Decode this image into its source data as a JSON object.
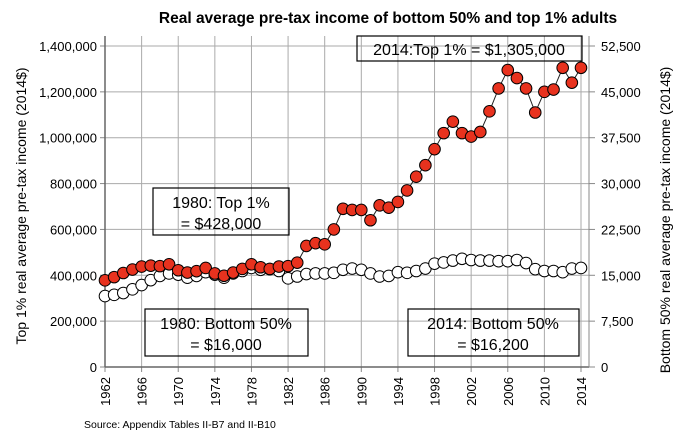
{
  "chart_data": {
    "type": "line",
    "title": "Real average pre-tax income of bottom 50% and top 1% adults",
    "ylabel": "Top 1% real average pre-tax income (2014$)",
    "y2label": "Bottom 50% real average pre-tax income (2014$)",
    "source": "Source: Appendix Tables II-B7 and II-B10",
    "xlim": [
      1962,
      2014
    ],
    "ylim": [
      0,
      1400000
    ],
    "y2lim": [
      0,
      52500
    ],
    "grid": true,
    "x_ticks": [
      "1962",
      "1966",
      "1970",
      "1974",
      "1978",
      "1982",
      "1986",
      "1990",
      "1994",
      "1998",
      "2002",
      "2006",
      "2010",
      "2014"
    ],
    "y_ticks": [
      "0",
      "200,000",
      "400,000",
      "600,000",
      "800,000",
      "1,000,000",
      "1,200,000",
      "1,400,000"
    ],
    "y2_ticks": [
      "0",
      "7,500",
      "15,000",
      "22,500",
      "30,000",
      "37,500",
      "45,000",
      "52,500"
    ],
    "x": [
      1962,
      1963,
      1964,
      1965,
      1966,
      1967,
      1968,
      1969,
      1970,
      1971,
      1972,
      1973,
      1974,
      1975,
      1976,
      1977,
      1978,
      1979,
      1980,
      1981,
      1982,
      1983,
      1984,
      1985,
      1986,
      1987,
      1988,
      1989,
      1990,
      1991,
      1992,
      1993,
      1994,
      1995,
      1996,
      1997,
      1998,
      1999,
      2000,
      2001,
      2002,
      2003,
      2004,
      2005,
      2006,
      2007,
      2008,
      2009,
      2010,
      2011,
      2012,
      2013,
      2014
    ],
    "series": [
      {
        "name": "Top 1%",
        "axis": "left",
        "color": "#e8321e",
        "values": [
          378000,
          392000,
          410000,
          425000,
          438000,
          442000,
          440000,
          448000,
          422000,
          412000,
          418000,
          432000,
          408000,
          398000,
          412000,
          428000,
          448000,
          435000,
          428000,
          438000,
          440000,
          455000,
          528000,
          540000,
          535000,
          600000,
          690000,
          685000,
          685000,
          640000,
          705000,
          695000,
          720000,
          770000,
          830000,
          880000,
          950000,
          1020000,
          1070000,
          1020000,
          1005000,
          1025000,
          1115000,
          1215000,
          1295000,
          1260000,
          1215000,
          1110000,
          1200000,
          1210000,
          1305000,
          1240000,
          1305000
        ]
      },
      {
        "name": "Bottom 50%",
        "axis": "right",
        "color": "#ffffff",
        "values": [
          11600,
          11800,
          12100,
          12700,
          13400,
          14200,
          14900,
          15300,
          15100,
          14600,
          14900,
          15500,
          15100,
          14600,
          15300,
          15700,
          16200,
          15900,
          16000,
          15700,
          14500,
          14800,
          15200,
          15300,
          15300,
          15400,
          15900,
          16100,
          15900,
          15300,
          14800,
          14900,
          15500,
          15400,
          15700,
          16100,
          16900,
          17100,
          17400,
          17700,
          17500,
          17400,
          17400,
          17300,
          17300,
          17500,
          17000,
          16000,
          15700,
          15700,
          15500,
          16100,
          16200
        ]
      }
    ],
    "annotations": [
      {
        "id": "top-2014",
        "text": "2014:Top 1% = $1,305,000"
      },
      {
        "id": "top-1980",
        "line1": "1980: Top 1%",
        "line2": "= $428,000"
      },
      {
        "id": "bottom-1980",
        "line1": "1980: Bottom 50%",
        "line2": "= $16,000"
      },
      {
        "id": "bottom-2014",
        "line1": "2014: Bottom 50%",
        "line2": "= $16,200"
      }
    ]
  }
}
